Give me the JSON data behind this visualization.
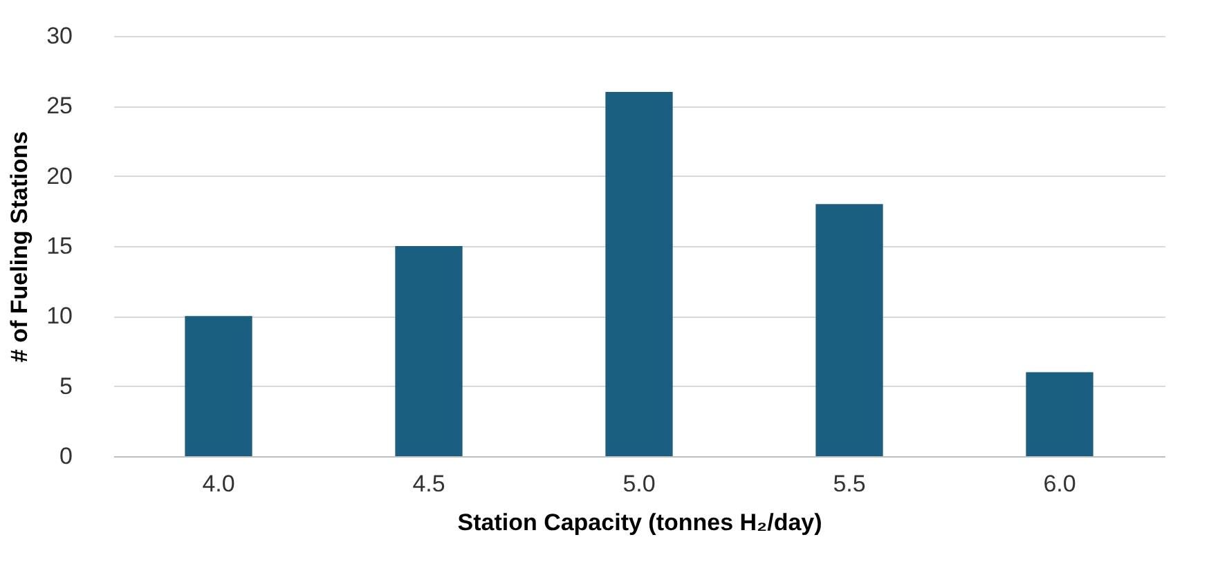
{
  "chart_data": {
    "type": "bar",
    "xlabel": "Station Capacity (tonnes H₂/day)",
    "ylabel": "# of Fueling Stations",
    "categories": [
      "4.0",
      "4.5",
      "5.0",
      "5.5",
      "6.0"
    ],
    "values": [
      10,
      15,
      26,
      18,
      6
    ],
    "color": "#1b5f80",
    "ylim": [
      0,
      30
    ],
    "yticks": [
      0,
      5,
      10,
      15,
      20,
      25,
      30
    ],
    "grid": "y"
  }
}
